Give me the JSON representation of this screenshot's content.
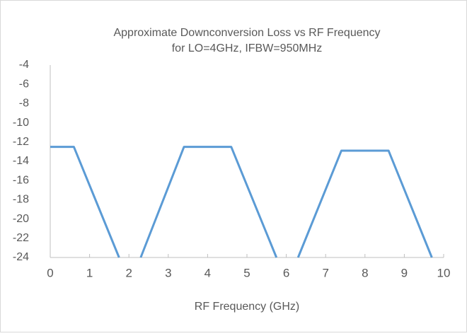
{
  "chart_data": {
    "type": "line",
    "title": [
      "Approximate Downconversion Loss vs RF Frequency",
      "for LO=4GHz, IFBW=950MHz"
    ],
    "x_label": "RF Frequency (GHz)",
    "x": [
      0,
      0.6,
      1.75,
      2,
      2.3,
      3.4,
      4.6,
      5.75,
      6,
      6.3,
      7.4,
      8.6,
      9.7
    ],
    "series": [
      {
        "name": "Loss",
        "color": "#5b9bd5",
        "values": [
          -12.5,
          -12.5,
          -24,
          null,
          -24,
          -12.5,
          -12.5,
          -24,
          null,
          -24,
          -12.9,
          -12.9,
          -24
        ]
      }
    ],
    "xlim": [
      0,
      10
    ],
    "xticks": [
      0,
      1,
      2,
      3,
      4,
      5,
      6,
      7,
      8,
      9,
      10
    ],
    "ylim": [
      -24,
      -4
    ],
    "yticks": [
      -4,
      -6,
      -8,
      -10,
      -12,
      -14,
      -16,
      -18,
      -20,
      -22,
      -24
    ],
    "grid": false
  }
}
